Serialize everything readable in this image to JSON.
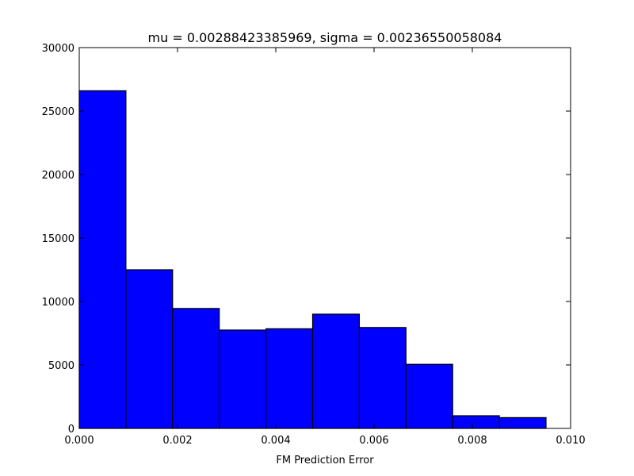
{
  "chart_data": {
    "type": "bar",
    "title": "mu = 0.00288423385969, sigma = 0.00236550058084",
    "xlabel": "FM Prediction Error",
    "ylabel": "",
    "xlim": [
      0.0,
      0.01
    ],
    "ylim": [
      0,
      30000
    ],
    "xticks": [
      0.0,
      0.002,
      0.004,
      0.006,
      0.008,
      0.01
    ],
    "xtick_labels": [
      "0.000",
      "0.002",
      "0.004",
      "0.006",
      "0.008",
      "0.010"
    ],
    "yticks": [
      0,
      5000,
      10000,
      15000,
      20000,
      25000,
      30000
    ],
    "ytick_labels": [
      "0",
      "5000",
      "10000",
      "15000",
      "20000",
      "25000",
      "30000"
    ],
    "bin_edges": [
      0.0,
      0.00095,
      0.0019,
      0.00285,
      0.0038,
      0.00475,
      0.0057,
      0.00665,
      0.0076,
      0.00855,
      0.0095
    ],
    "values": [
      26600,
      12500,
      9450,
      7750,
      7850,
      9000,
      7950,
      5050,
      1000,
      850
    ],
    "bar_color": "#0000ff",
    "edge_color": "#000000",
    "grid": false
  }
}
